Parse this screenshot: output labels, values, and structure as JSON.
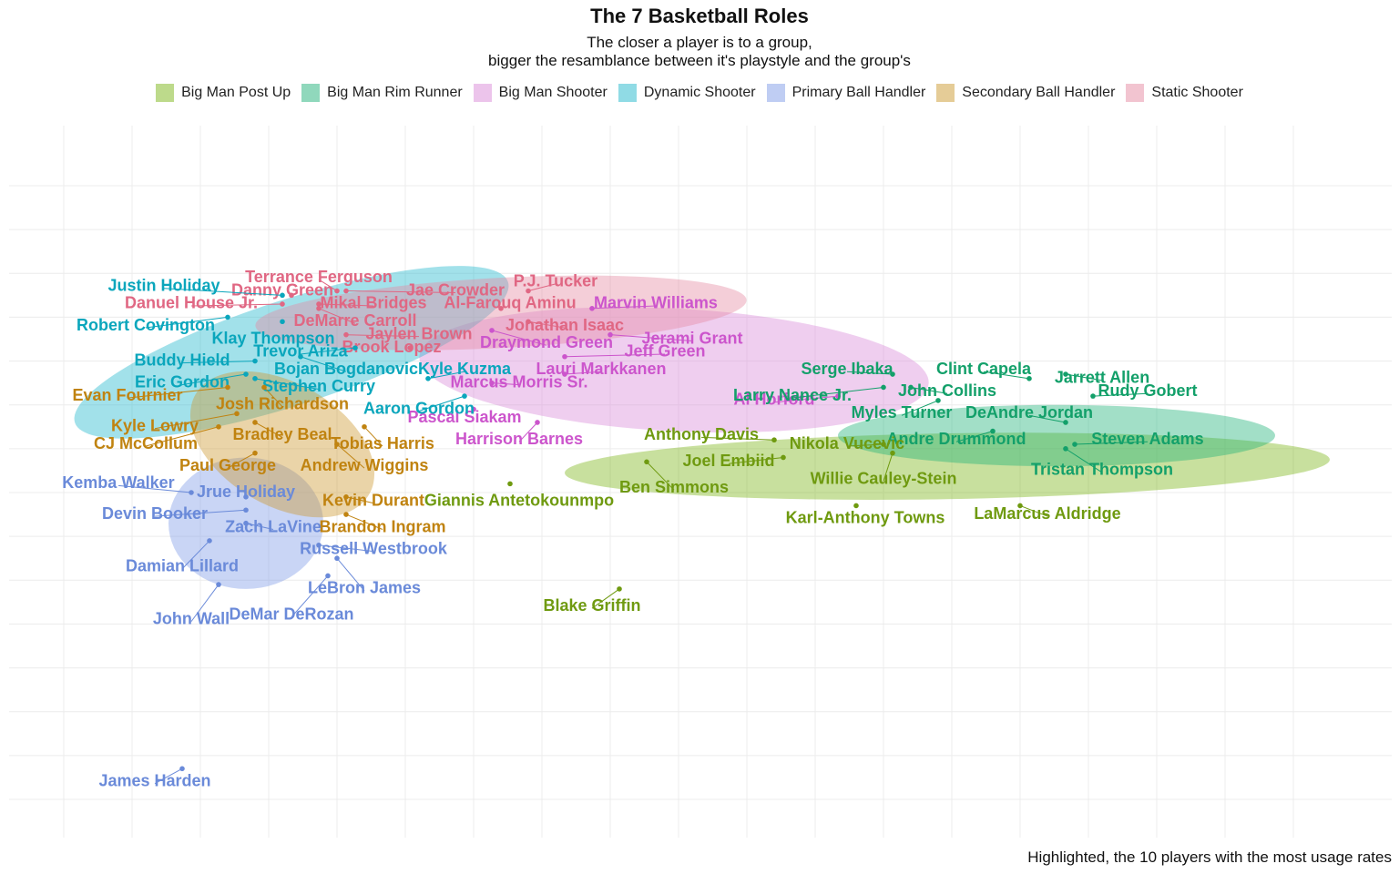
{
  "chart_data": {
    "type": "scatter",
    "title": "The 7 Basketball Roles",
    "subtitle_lines": [
      "The closer a player is to a group,",
      "bigger the resamblance between it's playstyle and the group's"
    ],
    "caption": "Highlighted, the 10 players with the most usage rates",
    "xlim": [
      0,
      14
    ],
    "ylim": [
      -7,
      7
    ],
    "grid": true,
    "legend_position": "top",
    "groups": [
      {
        "name": "Big Man Post Up",
        "color": "#7cb518",
        "label_color": "#6f9a10",
        "ellipse": {
          "cx": 9.7,
          "cy": 0.6,
          "rx": 4.2,
          "ry": 0.75,
          "angle": -1
        }
      },
      {
        "name": "Big Man Rim Runner",
        "color": "#21b27a",
        "label_color": "#13a06a",
        "ellipse": {
          "cx": 10.9,
          "cy": 1.3,
          "rx": 2.4,
          "ry": 0.7,
          "angle": 0
        }
      },
      {
        "name": "Big Man Shooter",
        "color": "#d98ad8",
        "label_color": "#cc55cc",
        "ellipse": {
          "cx": 6.7,
          "cy": 2.8,
          "rx": 2.8,
          "ry": 1.4,
          "angle": 3
        }
      },
      {
        "name": "Dynamic Shooter",
        "color": "#22b8cc",
        "label_color": "#0aa6bc",
        "ellipse": {
          "cx": 2.5,
          "cy": 3.2,
          "rx": 2.5,
          "ry": 1.2,
          "angle": -18
        }
      },
      {
        "name": "Primary Ball Handler",
        "color": "#7f9be8",
        "label_color": "#6a8ad9",
        "ellipse": {
          "cx": 2.0,
          "cy": -0.7,
          "rx": 0.85,
          "ry": 1.5,
          "angle": 0
        }
      },
      {
        "name": "Secondary Ball Handler",
        "color": "#cc9930",
        "label_color": "#c08310",
        "ellipse": {
          "cx": 2.4,
          "cy": 1.1,
          "rx": 1.1,
          "ry": 1.4,
          "angle": 30
        }
      },
      {
        "name": "Static Shooter",
        "color": "#e58aa2",
        "label_color": "#e06783",
        "ellipse": {
          "cx": 4.8,
          "cy": 4.1,
          "rx": 2.7,
          "ry": 0.8,
          "angle": -3
        }
      }
    ],
    "points": [
      {
        "name": "Terrance Ferguson",
        "group": "Static Shooter",
        "x": 3.0,
        "y": 4.6,
        "lx": 2.8,
        "ly": 4.9
      },
      {
        "name": "Danny Green",
        "group": "Static Shooter",
        "x": 2.5,
        "y": 4.5,
        "lx": 2.4,
        "ly": 4.6
      },
      {
        "name": "Jae Crowder",
        "group": "Static Shooter",
        "x": 3.1,
        "y": 4.6,
        "lx": 4.3,
        "ly": 4.6
      },
      {
        "name": "P.J. Tucker",
        "group": "Static Shooter",
        "x": 5.1,
        "y": 4.6,
        "lx": 5.4,
        "ly": 4.8
      },
      {
        "name": "Mikal Bridges",
        "group": "Static Shooter",
        "x": 2.8,
        "y": 4.3,
        "lx": 3.4,
        "ly": 4.3
      },
      {
        "name": "Danuel House Jr.",
        "group": "Static Shooter",
        "x": 2.4,
        "y": 4.3,
        "lx": 1.4,
        "ly": 4.3
      },
      {
        "name": "Al-Farouq Aminu",
        "group": "Static Shooter",
        "x": 4.8,
        "y": 4.2,
        "lx": 4.9,
        "ly": 4.3
      },
      {
        "name": "DeMarre Carroll",
        "group": "Static Shooter",
        "x": 2.8,
        "y": 4.2,
        "lx": 3.2,
        "ly": 3.9
      },
      {
        "name": "Jonathan Isaac",
        "group": "Static Shooter",
        "x": 5.1,
        "y": 3.9,
        "lx": 5.5,
        "ly": 3.8
      },
      {
        "name": "Jaylen Brown",
        "group": "Static Shooter",
        "x": 3.1,
        "y": 3.6,
        "lx": 3.9,
        "ly": 3.6
      },
      {
        "name": "Brook Lopez",
        "group": "Static Shooter",
        "x": 3.8,
        "y": 3.3,
        "lx": 3.6,
        "ly": 3.3
      },
      {
        "name": "Marvin Williams",
        "group": "Big Man Shooter",
        "x": 5.8,
        "y": 4.2,
        "lx": 6.5,
        "ly": 4.3
      },
      {
        "name": "Jerami Grant",
        "group": "Big Man Shooter",
        "x": 6.0,
        "y": 3.6,
        "lx": 6.9,
        "ly": 3.5
      },
      {
        "name": "Draymond Green",
        "group": "Big Man Shooter",
        "x": 4.7,
        "y": 3.7,
        "lx": 5.3,
        "ly": 3.4
      },
      {
        "name": "Jeff Green",
        "group": "Big Man Shooter",
        "x": 5.5,
        "y": 3.1,
        "lx": 6.6,
        "ly": 3.2
      },
      {
        "name": "Lauri Markkanen",
        "group": "Big Man Shooter",
        "x": 5.5,
        "y": 2.7,
        "lx": 5.9,
        "ly": 2.8
      },
      {
        "name": "Marcus Morris Sr.",
        "group": "Big Man Shooter",
        "x": 4.7,
        "y": 2.5,
        "lx": 5.0,
        "ly": 2.5
      },
      {
        "name": "Pascal Siakam",
        "group": "Big Man Shooter",
        "x": 4.5,
        "y": 1.9,
        "lx": 4.4,
        "ly": 1.7
      },
      {
        "name": "Harrison Barnes",
        "group": "Big Man Shooter",
        "x": 5.2,
        "y": 1.6,
        "lx": 5.0,
        "ly": 1.2
      },
      {
        "name": "Al Horford",
        "group": "Big Man Shooter",
        "x": 8.5,
        "y": 2.2,
        "lx": 7.8,
        "ly": 2.1
      },
      {
        "name": "Justin Holiday",
        "group": "Dynamic Shooter",
        "x": 2.4,
        "y": 4.5,
        "lx": 1.1,
        "ly": 4.7
      },
      {
        "name": "Robert Covington",
        "group": "Dynamic Shooter",
        "x": 1.8,
        "y": 4.0,
        "lx": 0.9,
        "ly": 3.8
      },
      {
        "name": "Klay Thompson",
        "group": "Dynamic Shooter",
        "x": 2.4,
        "y": 3.9,
        "lx": 2.3,
        "ly": 3.5
      },
      {
        "name": "Trevor Ariza",
        "group": "Dynamic Shooter",
        "x": 3.2,
        "y": 3.3,
        "lx": 2.6,
        "ly": 3.2
      },
      {
        "name": "Buddy Hield",
        "group": "Dynamic Shooter",
        "x": 2.1,
        "y": 3.0,
        "lx": 1.3,
        "ly": 3.0
      },
      {
        "name": "Bojan Bogdanovic",
        "group": "Dynamic Shooter",
        "x": 2.6,
        "y": 3.1,
        "lx": 3.1,
        "ly": 2.8
      },
      {
        "name": "Eric Gordon",
        "group": "Dynamic Shooter",
        "x": 2.0,
        "y": 2.7,
        "lx": 1.3,
        "ly": 2.5
      },
      {
        "name": "Stephen Curry",
        "group": "Dynamic Shooter",
        "x": 2.1,
        "y": 2.6,
        "lx": 2.8,
        "ly": 2.4
      },
      {
        "name": "Kyle Kuzma",
        "group": "Dynamic Shooter",
        "x": 4.0,
        "y": 2.6,
        "lx": 4.4,
        "ly": 2.8
      },
      {
        "name": "Aaron Gordon",
        "group": "Dynamic Shooter",
        "x": 4.4,
        "y": 2.2,
        "lx": 3.9,
        "ly": 1.9
      },
      {
        "name": "Evan Fournier",
        "group": "Secondary Ball Handler",
        "x": 1.8,
        "y": 2.4,
        "lx": 0.7,
        "ly": 2.2
      },
      {
        "name": "Josh Richardson",
        "group": "Secondary Ball Handler",
        "x": 2.2,
        "y": 2.4,
        "lx": 2.4,
        "ly": 2.0
      },
      {
        "name": "Kyle Lowry",
        "group": "Secondary Ball Handler",
        "x": 1.9,
        "y": 1.8,
        "lx": 1.0,
        "ly": 1.5
      },
      {
        "name": "Bradley Beal",
        "group": "Secondary Ball Handler",
        "x": 2.1,
        "y": 1.6,
        "lx": 2.4,
        "ly": 1.3
      },
      {
        "name": "CJ McCollum",
        "group": "Secondary Ball Handler",
        "x": 1.7,
        "y": 1.5,
        "lx": 0.9,
        "ly": 1.1
      },
      {
        "name": "Tobias Harris",
        "group": "Secondary Ball Handler",
        "x": 3.3,
        "y": 1.5,
        "lx": 3.5,
        "ly": 1.1
      },
      {
        "name": "Paul George",
        "group": "Secondary Ball Handler",
        "x": 2.1,
        "y": 0.9,
        "lx": 1.8,
        "ly": 0.6
      },
      {
        "name": "Andrew Wiggins",
        "group": "Secondary Ball Handler",
        "x": 3.0,
        "y": 1.1,
        "lx": 3.3,
        "ly": 0.6
      },
      {
        "name": "Kevin Durant",
        "group": "Secondary Ball Handler",
        "x": 3.1,
        "y": -0.1,
        "lx": 3.4,
        "ly": -0.2
      },
      {
        "name": "Brandon Ingram",
        "group": "Secondary Ball Handler",
        "x": 3.1,
        "y": -0.5,
        "lx": 3.5,
        "ly": -0.8
      },
      {
        "name": "Kemba Walker",
        "group": "Primary Ball Handler",
        "x": 1.4,
        "y": 0.0,
        "lx": 0.6,
        "ly": 0.2
      },
      {
        "name": "Jrue Holiday",
        "group": "Primary Ball Handler",
        "x": 2.0,
        "y": -0.1,
        "lx": 2.0,
        "ly": 0.0
      },
      {
        "name": "Devin Booker",
        "group": "Primary Ball Handler",
        "x": 2.0,
        "y": -0.4,
        "lx": 1.0,
        "ly": -0.5
      },
      {
        "name": "Zach LaVine",
        "group": "Primary Ball Handler",
        "x": 2.0,
        "y": -0.7,
        "lx": 2.3,
        "ly": -0.8
      },
      {
        "name": "Damian Lillard",
        "group": "Primary Ball Handler",
        "x": 1.6,
        "y": -1.1,
        "lx": 1.3,
        "ly": -1.7
      },
      {
        "name": "Russell Westbrook",
        "group": "Primary Ball Handler",
        "x": 2.8,
        "y": -1.2,
        "lx": 3.4,
        "ly": -1.3
      },
      {
        "name": "LeBron James",
        "group": "Primary Ball Handler",
        "x": 3.0,
        "y": -1.5,
        "lx": 3.3,
        "ly": -2.2
      },
      {
        "name": "John Wall",
        "group": "Primary Ball Handler",
        "x": 1.7,
        "y": -2.1,
        "lx": 1.4,
        "ly": -2.9
      },
      {
        "name": "DeMar DeRozan",
        "group": "Primary Ball Handler",
        "x": 2.9,
        "y": -1.9,
        "lx": 2.5,
        "ly": -2.8
      },
      {
        "name": "James Harden",
        "group": "Primary Ball Handler",
        "x": 1.3,
        "y": -6.3,
        "lx": 1.0,
        "ly": -6.6
      },
      {
        "name": "Serge Ibaka",
        "group": "Big Man Rim Runner",
        "x": 9.1,
        "y": 2.7,
        "lx": 8.6,
        "ly": 2.8
      },
      {
        "name": "Clint Capela",
        "group": "Big Man Rim Runner",
        "x": 10.6,
        "y": 2.6,
        "lx": 10.1,
        "ly": 2.8
      },
      {
        "name": "Jarrett Allen",
        "group": "Big Man Rim Runner",
        "x": 11.0,
        "y": 2.7,
        "lx": 11.4,
        "ly": 2.6
      },
      {
        "name": "Larry Nance Jr.",
        "group": "Big Man Rim Runner",
        "x": 9.0,
        "y": 2.4,
        "lx": 8.0,
        "ly": 2.2
      },
      {
        "name": "John Collins",
        "group": "Big Man Rim Runner",
        "x": 9.3,
        "y": 2.4,
        "lx": 9.7,
        "ly": 2.3
      },
      {
        "name": "Rudy Gobert",
        "group": "Big Man Rim Runner",
        "x": 11.3,
        "y": 2.2,
        "lx": 11.9,
        "ly": 2.3
      },
      {
        "name": "Myles Turner",
        "group": "Big Man Rim Runner",
        "x": 9.6,
        "y": 2.1,
        "lx": 9.2,
        "ly": 1.8
      },
      {
        "name": "DeAndre Jordan",
        "group": "Big Man Rim Runner",
        "x": 11.0,
        "y": 1.6,
        "lx": 10.6,
        "ly": 1.8
      },
      {
        "name": "Andre Drummond",
        "group": "Big Man Rim Runner",
        "x": 10.2,
        "y": 1.4,
        "lx": 9.8,
        "ly": 1.2
      },
      {
        "name": "Steven Adams",
        "group": "Big Man Rim Runner",
        "x": 11.1,
        "y": 1.1,
        "lx": 11.9,
        "ly": 1.2
      },
      {
        "name": "Tristan Thompson",
        "group": "Big Man Rim Runner",
        "x": 11.0,
        "y": 1.0,
        "lx": 11.4,
        "ly": 0.5
      },
      {
        "name": "Anthony Davis",
        "group": "Big Man Post Up",
        "x": 7.8,
        "y": 1.2,
        "lx": 7.0,
        "ly": 1.3
      },
      {
        "name": "Nikola Vucevic",
        "group": "Big Man Post Up",
        "x": 9.0,
        "y": 1.1,
        "lx": 8.6,
        "ly": 1.1
      },
      {
        "name": "Joel Embiid",
        "group": "Big Man Post Up",
        "x": 7.9,
        "y": 0.8,
        "lx": 7.3,
        "ly": 0.7
      },
      {
        "name": "Willie Cauley-Stein",
        "group": "Big Man Post Up",
        "x": 9.1,
        "y": 0.9,
        "lx": 9.0,
        "ly": 0.3
      },
      {
        "name": "Ben Simmons",
        "group": "Big Man Post Up",
        "x": 6.4,
        "y": 0.7,
        "lx": 6.7,
        "ly": 0.1
      },
      {
        "name": "Giannis Antetokounmpo",
        "group": "Big Man Post Up",
        "x": 4.9,
        "y": 0.2,
        "lx": 5.0,
        "ly": -0.2
      },
      {
        "name": "Karl-Anthony Towns",
        "group": "Big Man Post Up",
        "x": 8.7,
        "y": -0.3,
        "lx": 8.8,
        "ly": -0.6
      },
      {
        "name": "LaMarcus Aldridge",
        "group": "Big Man Post Up",
        "x": 10.5,
        "y": -0.3,
        "lx": 10.8,
        "ly": -0.5
      },
      {
        "name": "Blake Griffin",
        "group": "Big Man Post Up",
        "x": 6.1,
        "y": -2.2,
        "lx": 5.8,
        "ly": -2.6
      }
    ]
  }
}
